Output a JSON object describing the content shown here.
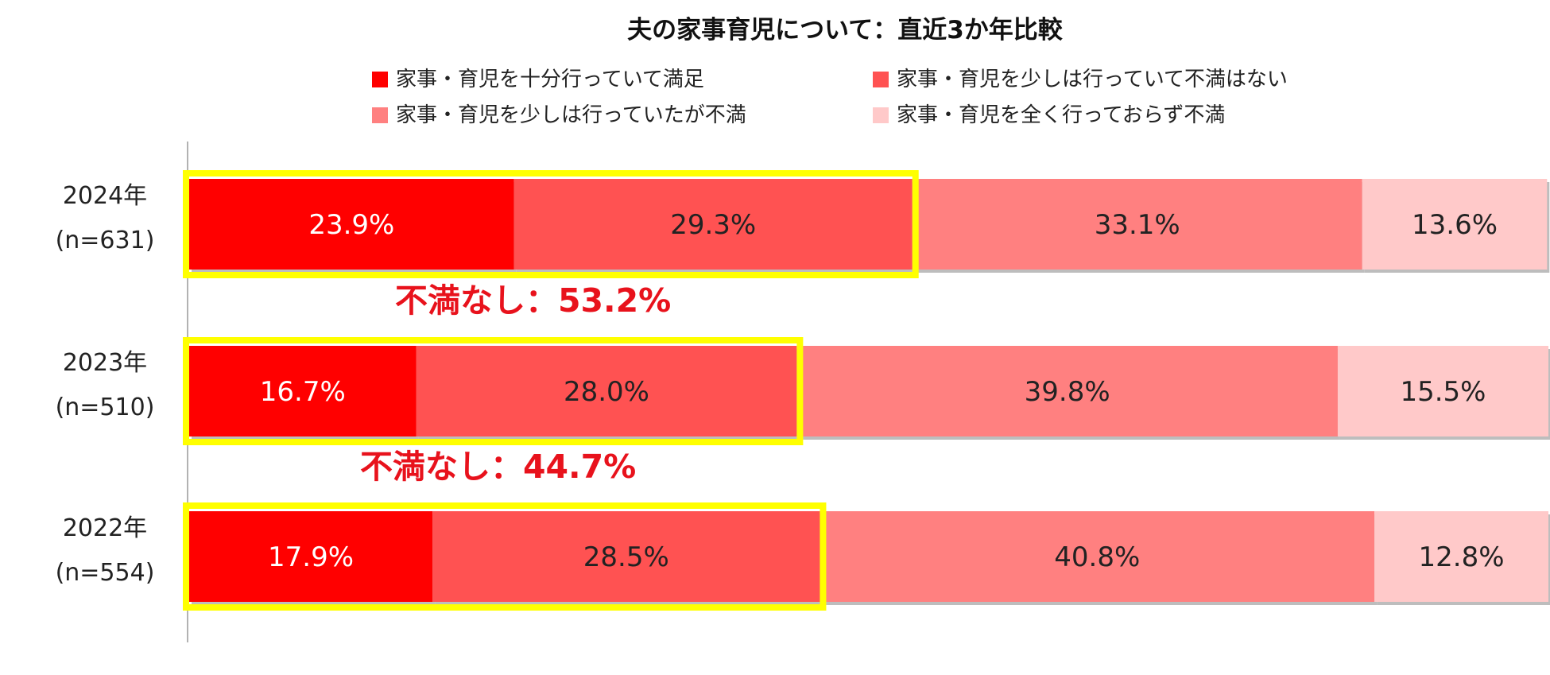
{
  "chart_data": {
    "type": "bar",
    "orientation": "horizontal",
    "stacked": true,
    "title": "夫の家事育児について：直近3か年比較",
    "categories": [
      {
        "year": "2024年",
        "n": "(n=631)"
      },
      {
        "year": "2023年",
        "n": "(n=510)"
      },
      {
        "year": "2022年",
        "n": "(n=554)"
      }
    ],
    "series": [
      {
        "name": "家事・育児を十分行っていて満足",
        "color": "#ff0000",
        "label_color": "#ffffff",
        "values": [
          23.9,
          16.7,
          17.9
        ]
      },
      {
        "name": "家事・育児を少しは行っていて不満はない",
        "color": "#ff5252",
        "label_color": "#222222",
        "values": [
          29.3,
          28.0,
          28.5
        ]
      },
      {
        "name": "家事・育児を少しは行っていたが不満",
        "color": "#ff8080",
        "label_color": "#222222",
        "values": [
          33.1,
          39.8,
          40.8
        ]
      },
      {
        "name": "家事・育児を全く行っておらず不満",
        "color": "#ffc9c9",
        "label_color": "#222222",
        "values": [
          13.6,
          15.5,
          12.8
        ]
      }
    ],
    "value_suffix": "%",
    "xlim": [
      0,
      100
    ],
    "grid": false,
    "legend_position": "top",
    "highlight_color": "#ffff00",
    "annotations": [
      "不満なし：53.2%",
      "不満なし：44.7%"
    ]
  }
}
